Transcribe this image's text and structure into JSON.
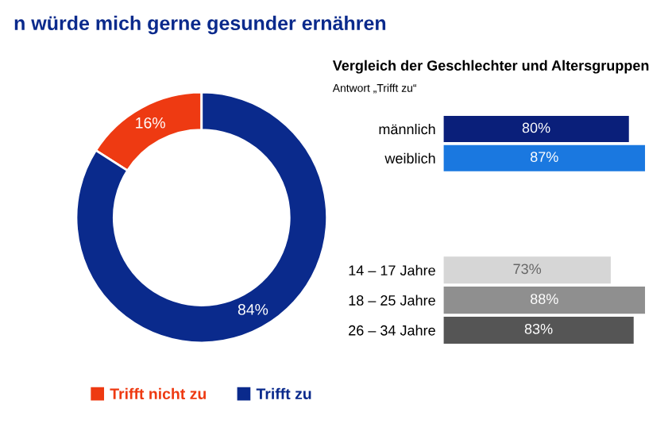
{
  "chart_data": [
    {
      "type": "donut",
      "title": "n würde mich gerne gesunder ernähren",
      "categories": [
        "Trifft nicht zu",
        "Trifft zu"
      ],
      "values": [
        16,
        84
      ],
      "colors": [
        "#ee3a12",
        "#0a2a8c"
      ],
      "value_labels": [
        "16%",
        "84%"
      ],
      "legend": "bottom"
    },
    {
      "type": "bar",
      "orientation": "horizontal",
      "title": "Vergleich der Geschlechter und Altersgruppen",
      "subtitle": "Antwort „Trifft zu“",
      "categories": [
        "männlich",
        "weiblich"
      ],
      "values": [
        80,
        87
      ],
      "colors": [
        "#0a1f7a",
        "#1a78e0"
      ],
      "value_labels": [
        "80%",
        "87%"
      ]
    },
    {
      "type": "bar",
      "orientation": "horizontal",
      "categories": [
        "14 – 17 Jahre",
        "18 – 25 Jahre",
        "26 – 34 Jahre"
      ],
      "values": [
        73,
        88,
        83
      ],
      "colors": [
        "#d6d6d6",
        "#8f8f8f",
        "#555555"
      ],
      "value_labels": [
        "73%",
        "88%",
        "83%"
      ]
    }
  ]
}
